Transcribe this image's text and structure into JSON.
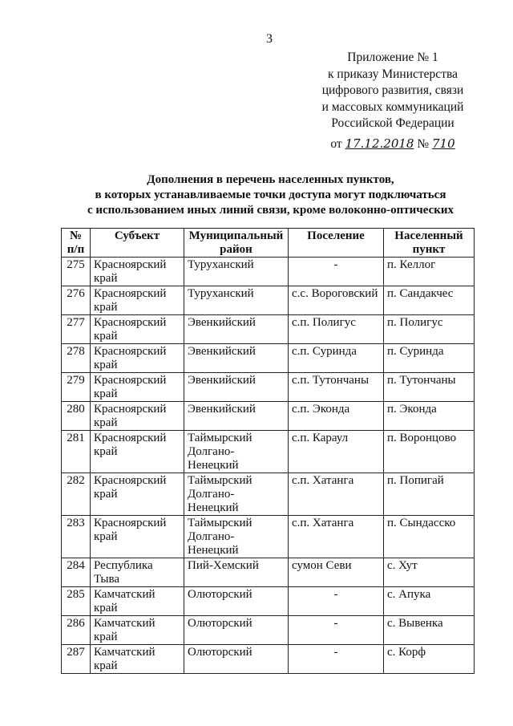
{
  "page_number": "3",
  "appendix": {
    "lines": [
      "Приложение № 1",
      "к приказу Министерства",
      "цифрового развития, связи",
      "и массовых коммуникаций",
      "Российской Федерации"
    ],
    "from_label": "от",
    "date": "17.12.2018",
    "number_label": "№",
    "number": "710"
  },
  "title": [
    "Дополнения в перечень населенных пунктов,",
    "в которых устанавливаемые точки доступа могут подключаться",
    "с использованием иных линий связи, кроме волоконно-оптических"
  ],
  "table": {
    "headers": [
      "№ п/п",
      "Субъект",
      "Муниципальный район",
      "Поселение",
      "Населенный пункт"
    ],
    "rows": [
      [
        "275",
        "Красноярский край",
        "Туруханский",
        "-",
        "п. Келлог"
      ],
      [
        "276",
        "Красноярский край",
        "Туруханский",
        "с.с. Вороговский",
        "п. Сандакчес"
      ],
      [
        "277",
        "Красноярский край",
        "Эвенкийский",
        "с.п. Полигус",
        "п. Полигус"
      ],
      [
        "278",
        "Красноярский край",
        "Эвенкийский",
        "с.п. Суринда",
        "п. Суринда"
      ],
      [
        "279",
        "Красноярский край",
        "Эвенкийский",
        "с.п. Тутончаны",
        "п. Тутончаны"
      ],
      [
        "280",
        "Красноярский край",
        "Эвенкийский",
        "с.п. Эконда",
        "п. Эконда"
      ],
      [
        "281",
        "Красноярский край",
        "Таймырский Долгано-Ненецкий",
        "с.п. Караул",
        "п. Воронцово"
      ],
      [
        "282",
        "Красноярский край",
        "Таймырский Долгано-Ненецкий",
        "с.п. Хатанга",
        "п. Попигай"
      ],
      [
        "283",
        "Красноярский край",
        "Таймырский Долгано-Ненецкий",
        "с.п. Хатанга",
        "п. Сындасско"
      ],
      [
        "284",
        "Республика Тыва",
        "Пий-Хемский",
        "сумон Севи",
        "с. Хут"
      ],
      [
        "285",
        "Камчатский край",
        "Олюторский",
        "-",
        "с. Апука"
      ],
      [
        "286",
        "Камчатский край",
        "Олюторский",
        "-",
        "с. Вывенка"
      ],
      [
        "287",
        "Камчатский край",
        "Олюторский",
        "-",
        "с. Корф"
      ]
    ]
  }
}
